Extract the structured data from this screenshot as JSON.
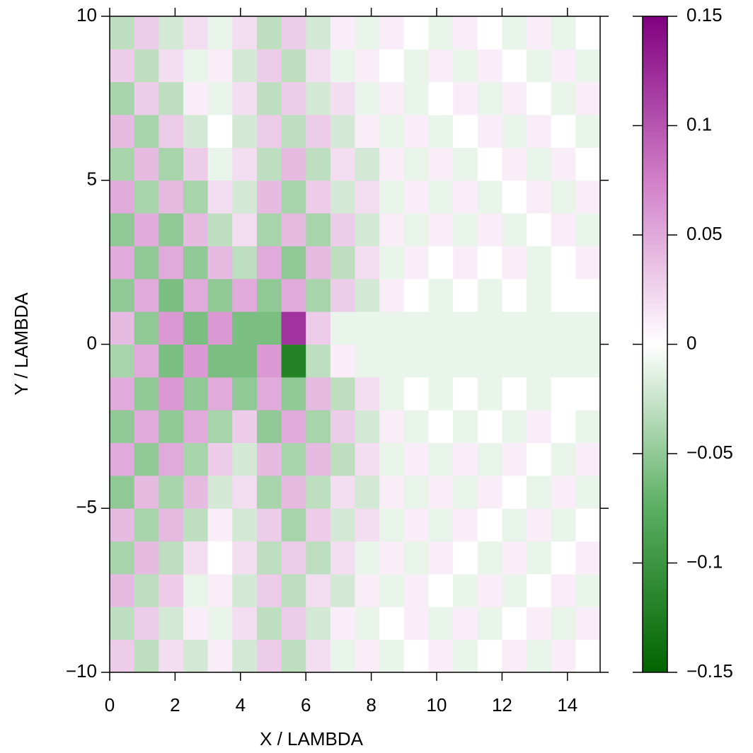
{
  "chart_data": {
    "type": "heatmap",
    "xlabel": "X / LAMBDA",
    "ylabel": "Y / LAMBDA",
    "xlim": [
      0,
      15
    ],
    "ylim": [
      -10,
      10
    ],
    "xticks": [
      0,
      2,
      4,
      6,
      8,
      10,
      12,
      14
    ],
    "yticks": [
      {
        "value": -10,
        "label": "−10"
      },
      {
        "value": -5,
        "label": "−5"
      },
      0,
      5,
      10
    ],
    "x": [
      0.375,
      1.125,
      1.875,
      2.625,
      3.375,
      4.125,
      4.875,
      5.625,
      6.375,
      7.125,
      7.875,
      8.625,
      9.375,
      10.125,
      10.875,
      11.625,
      12.375,
      13.125,
      13.875,
      14.625
    ],
    "y": [
      -9.5,
      -8.5,
      -7.5,
      -6.5,
      -5.5,
      -4.5,
      -3.5,
      -2.5,
      -1.5,
      -0.5,
      0.5,
      1.5,
      2.5,
      3.5,
      4.5,
      5.5,
      6.5,
      7.5,
      8.5,
      9.5
    ],
    "z": [
      [
        0.03,
        -0.03,
        0.02,
        -0.02,
        0.01,
        -0.02,
        0.03,
        -0.03,
        0.02,
        -0.01,
        0.01,
        -0.01,
        0,
        0.01,
        -0.01,
        0,
        0.01,
        -0.01,
        0.01,
        0
      ],
      [
        -0.03,
        0.03,
        -0.02,
        0.01,
        -0.01,
        0.02,
        -0.03,
        0.03,
        -0.02,
        0.01,
        -0.01,
        0,
        0.01,
        -0.01,
        0.01,
        -0.01,
        0,
        0.01,
        -0.01,
        0.01
      ],
      [
        0.04,
        -0.03,
        0.03,
        -0.01,
        0.01,
        -0.02,
        0.03,
        -0.03,
        0.02,
        -0.02,
        0.01,
        -0.01,
        0.01,
        0,
        -0.01,
        0.01,
        -0.01,
        0,
        0.01,
        -0.01
      ],
      [
        -0.04,
        0.04,
        -0.03,
        0.02,
        0,
        0.02,
        -0.03,
        0.03,
        -0.03,
        0.02,
        -0.01,
        0.01,
        -0.01,
        0.01,
        0,
        -0.01,
        0.01,
        -0.01,
        0,
        0.01
      ],
      [
        0.04,
        -0.04,
        0.04,
        -0.03,
        0.01,
        -0.02,
        0.03,
        -0.04,
        0.03,
        -0.02,
        0.02,
        -0.01,
        0.01,
        -0.01,
        0.01,
        0,
        -0.01,
        0.01,
        -0.01,
        0
      ],
      [
        -0.05,
        0.04,
        -0.04,
        0.04,
        -0.02,
        0.02,
        -0.04,
        0.04,
        -0.03,
        0.02,
        -0.02,
        0.01,
        -0.01,
        0.01,
        -0.01,
        0.01,
        0,
        -0.01,
        0.01,
        -0.01
      ],
      [
        0.05,
        -0.05,
        0.05,
        -0.04,
        0.03,
        -0.02,
        0.04,
        -0.04,
        0.04,
        -0.03,
        0.02,
        -0.01,
        0.01,
        -0.01,
        0.01,
        -0.01,
        0.01,
        0,
        -0.01,
        0.01
      ],
      [
        -0.05,
        0.05,
        -0.05,
        0.05,
        -0.04,
        0.03,
        -0.05,
        0.05,
        -0.04,
        0.03,
        -0.02,
        0.01,
        -0.01,
        0,
        -0.01,
        0,
        -0.01,
        0.01,
        0,
        -0.01
      ],
      [
        0.05,
        -0.05,
        0.06,
        -0.05,
        0.05,
        -0.05,
        0.05,
        -0.05,
        0.04,
        -0.03,
        0.02,
        -0.01,
        0,
        -0.01,
        0,
        -0.01,
        0,
        -0.01,
        0,
        0
      ],
      [
        -0.04,
        0.05,
        -0.06,
        0.06,
        -0.06,
        -0.06,
        0.06,
        -0.12,
        -0.03,
        0.01,
        -0.01,
        -0.01,
        -0.01,
        -0.01,
        -0.01,
        -0.01,
        -0.01,
        -0.01,
        -0.01,
        -0.01
      ],
      [
        0.04,
        -0.05,
        0.06,
        -0.06,
        0.06,
        -0.06,
        -0.06,
        0.12,
        0.03,
        -0.01,
        -0.01,
        -0.01,
        -0.01,
        -0.01,
        -0.01,
        -0.01,
        -0.01,
        -0.01,
        -0.01,
        -0.01
      ],
      [
        -0.05,
        0.05,
        -0.06,
        0.05,
        -0.05,
        0.05,
        -0.05,
        0.05,
        -0.04,
        0.03,
        -0.02,
        0.01,
        0,
        -0.01,
        0,
        -0.01,
        0,
        -0.01,
        0,
        0
      ],
      [
        0.05,
        -0.05,
        0.05,
        -0.05,
        0.04,
        -0.03,
        0.05,
        -0.05,
        0.04,
        -0.03,
        0.02,
        -0.01,
        0.01,
        0,
        0.01,
        0,
        0.01,
        -0.01,
        0,
        0.01
      ],
      [
        -0.05,
        0.05,
        -0.05,
        0.04,
        -0.03,
        0.02,
        -0.04,
        0.04,
        -0.04,
        0.03,
        -0.02,
        0.01,
        -0.01,
        0.01,
        -0.01,
        0.01,
        -0.01,
        0,
        0.01,
        -0.01
      ],
      [
        0.05,
        -0.04,
        0.04,
        -0.04,
        0.02,
        -0.02,
        0.04,
        -0.04,
        0.03,
        -0.02,
        0.02,
        -0.01,
        0.01,
        -0.01,
        0.01,
        -0.01,
        0,
        0.01,
        -0.01,
        0.01
      ],
      [
        -0.04,
        0.04,
        -0.04,
        0.03,
        -0.01,
        0.02,
        -0.03,
        0.04,
        -0.03,
        0.02,
        -0.02,
        0.01,
        -0.01,
        0.01,
        -0.01,
        0,
        0.01,
        -0.01,
        0.01,
        0
      ],
      [
        0.04,
        -0.04,
        0.03,
        -0.02,
        0,
        -0.02,
        0.03,
        -0.03,
        0.03,
        -0.02,
        0.01,
        -0.01,
        0.01,
        -0.01,
        0,
        0.01,
        -0.01,
        0.01,
        0,
        -0.01
      ],
      [
        -0.04,
        0.03,
        -0.03,
        0.01,
        -0.01,
        0.02,
        -0.03,
        0.03,
        -0.02,
        0.02,
        -0.01,
        0.01,
        -0.01,
        0,
        0.01,
        -0.01,
        0.01,
        0,
        -0.01,
        0.01
      ],
      [
        0.03,
        -0.03,
        0.02,
        -0.01,
        0.01,
        -0.02,
        0.03,
        -0.03,
        0.02,
        -0.01,
        0.01,
        0,
        -0.01,
        0.01,
        -0.01,
        0.01,
        0,
        -0.01,
        0.01,
        -0.01
      ],
      [
        -0.03,
        0.03,
        -0.02,
        0.02,
        -0.01,
        0.02,
        -0.03,
        0.03,
        -0.02,
        0.01,
        -0.01,
        0.01,
        0,
        -0.01,
        0.01,
        0,
        -0.01,
        0.01,
        -0.01,
        0
      ]
    ],
    "zlim": [
      -0.15,
      0.15
    ],
    "zticks": [
      {
        "value": -0.15,
        "label": "−0.15"
      },
      {
        "value": -0.1,
        "label": "−0.1"
      },
      {
        "value": -0.05,
        "label": "−0.05"
      },
      0,
      0.05,
      0.1,
      0.15
    ],
    "colormap": [
      "#006400",
      "#5aae61",
      "#ffffff",
      "#d17fc8",
      "#800080"
    ]
  }
}
